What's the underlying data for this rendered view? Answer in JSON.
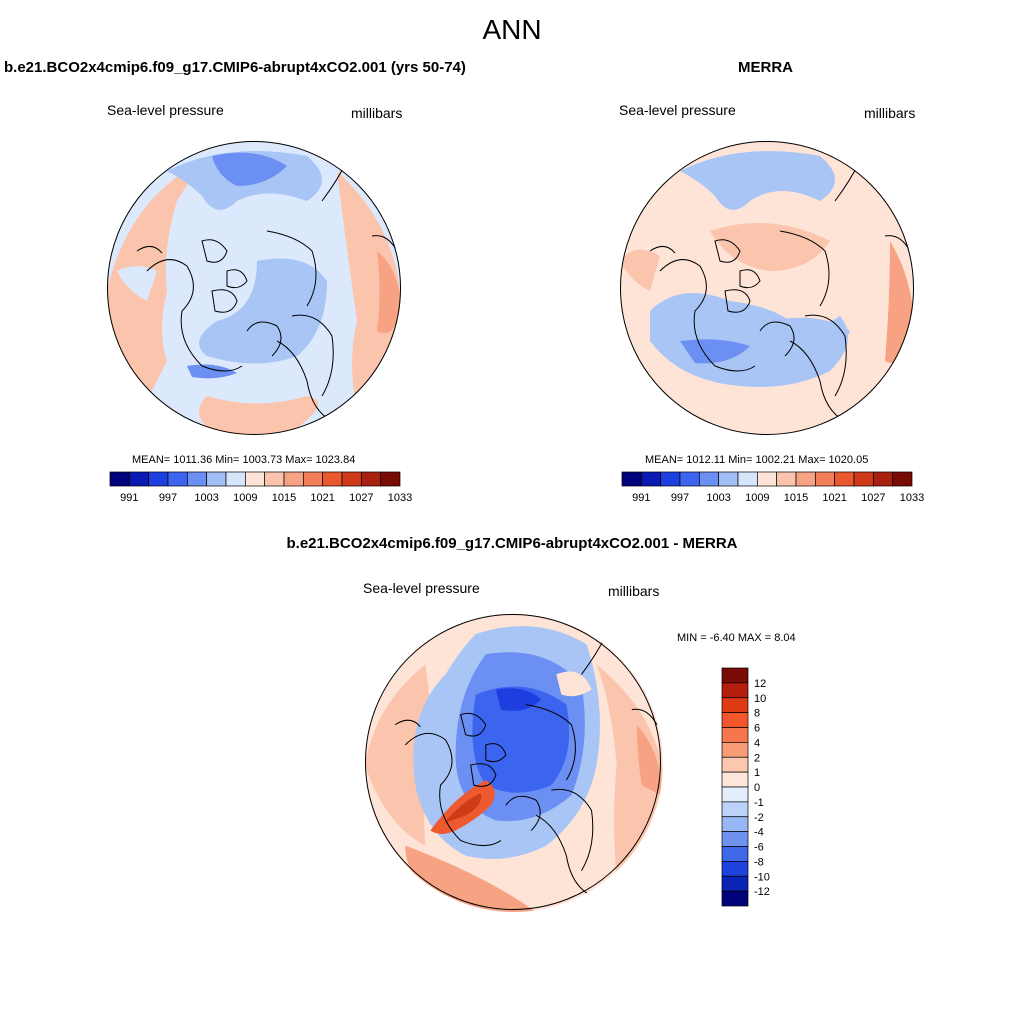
{
  "title": "ANN",
  "panels": [
    {
      "title": "b.e21.BCO2x4cmip6.f09_g17.CMIP6-abrupt4xCO2.001 (yrs 50-74)",
      "left_label": "Sea-level pressure",
      "right_label": "millibars",
      "stats": "MEAN= 1011.36  Min= 1003.73  Max= 1023.84",
      "field": "model",
      "projection": "north-polar stereographic",
      "dominant_colors": [
        "#e1ecfb",
        "#a8c5f6",
        "#fbd2bd",
        "#f6a283"
      ]
    },
    {
      "title": "MERRA",
      "left_label": "Sea-level pressure",
      "right_label": "millibars",
      "stats": "MEAN= 1012.11  Min= 1002.21  Max= 1020.05",
      "field": "obs",
      "projection": "north-polar stereographic",
      "dominant_colors": [
        "#fde4d6",
        "#a8c5f6",
        "#f6a283"
      ]
    },
    {
      "title": "b.e21.BCO2x4cmip6.f09_g17.CMIP6-abrupt4xCO2.001 - MERRA",
      "left_label": "Sea-level pressure",
      "right_label": "millibars",
      "stats": "MIN =  -6.40 MAX =   8.04",
      "field": "diff",
      "projection": "north-polar stereographic",
      "dominant_colors": [
        "#3a6ff0",
        "#ee5a2f",
        "#fde4d6",
        "#a8c5f6"
      ]
    }
  ],
  "abs_colorbar": {
    "orientation": "horizontal",
    "colors": [
      "#00037a",
      "#0a1ab2",
      "#1d3fe0",
      "#3c65ef",
      "#6b8ff2",
      "#a2bef6",
      "#d5e5fb",
      "#fde4d6",
      "#fbc5ad",
      "#f6a283",
      "#f17f5a",
      "#e9582f",
      "#cf3b19",
      "#a82110",
      "#7a0a04"
    ],
    "ticks": [
      "991",
      "997",
      "1003",
      "1009",
      "1015",
      "1021",
      "1027",
      "1033"
    ]
  },
  "diff_colorbar": {
    "orientation": "vertical",
    "colors": [
      "#7a0a04",
      "#b51e0c",
      "#de3a14",
      "#f2562b",
      "#f6774d",
      "#f89d78",
      "#fbc8af",
      "#fde7da",
      "#e5eefc",
      "#bcd2f8",
      "#97b6f4",
      "#6f92f0",
      "#3f67ea",
      "#1e43dd",
      "#0a24b6",
      "#00037a"
    ],
    "ticks": [
      "12",
      "10",
      "8",
      "6",
      "4",
      "2",
      "1",
      "0",
      "-1",
      "-2",
      "-4",
      "-6",
      "-8",
      "-10",
      "-12"
    ]
  },
  "legend_placement": {
    "abs": "below-each-map",
    "diff": "right-of-map"
  }
}
